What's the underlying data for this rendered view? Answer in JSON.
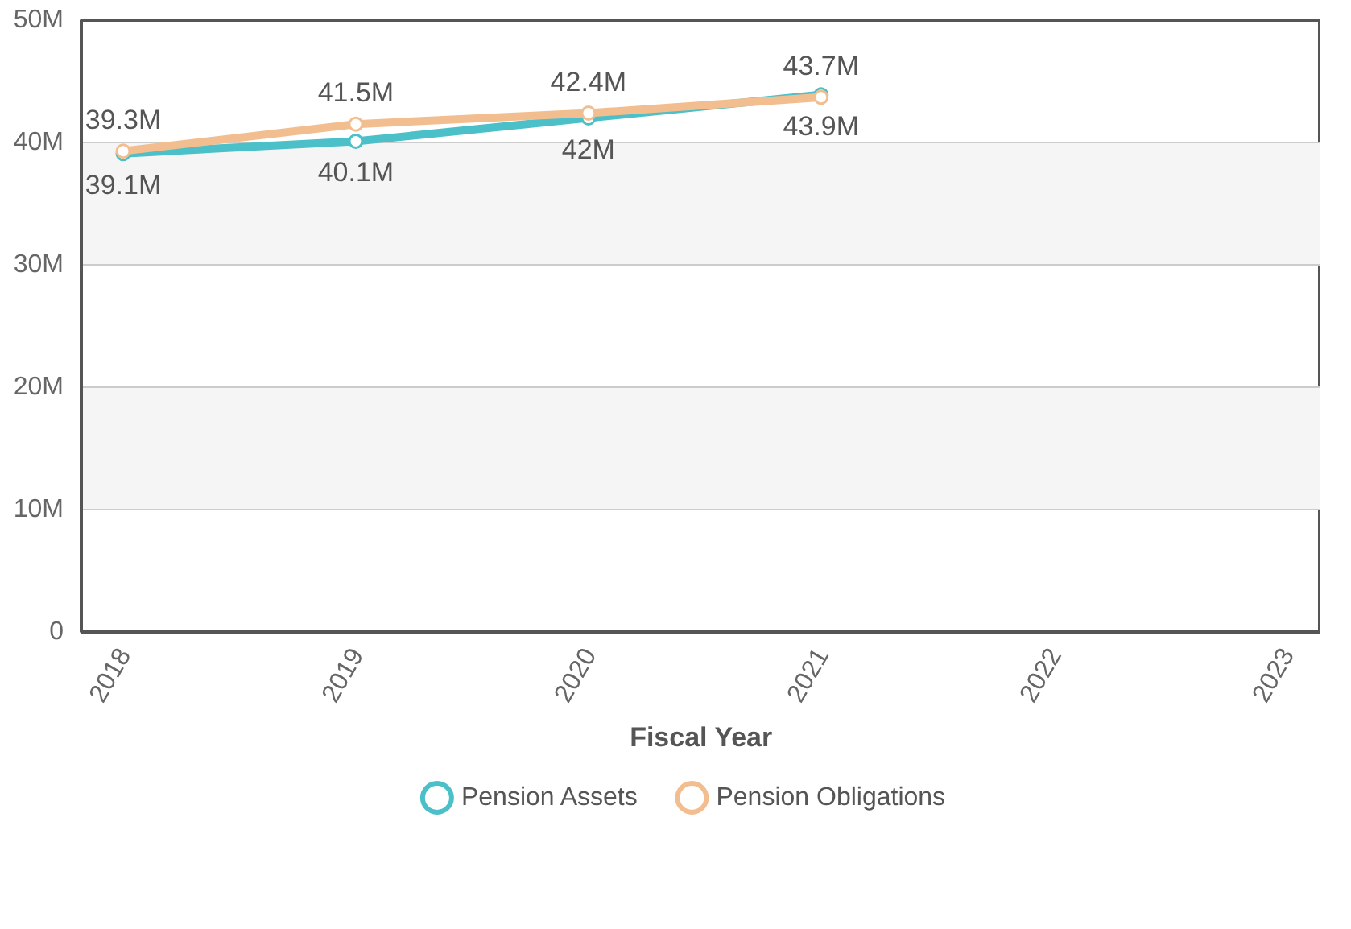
{
  "chart_data": {
    "type": "line",
    "xlabel": "Fiscal Year",
    "x": [
      2018,
      2019,
      2020,
      2021
    ],
    "xlim": [
      2017.82,
      2023.15
    ],
    "xticks": [
      2018,
      2019,
      2020,
      2021,
      2022,
      2023
    ],
    "ylim": [
      0,
      50000000
    ],
    "yticks": [
      {
        "value": 0,
        "label": "0"
      },
      {
        "value": 10000000,
        "label": "10M"
      },
      {
        "value": 20000000,
        "label": "20M"
      },
      {
        "value": 30000000,
        "label": "30M"
      },
      {
        "value": 40000000,
        "label": "40M"
      },
      {
        "value": 50000000,
        "label": "50M"
      }
    ],
    "series": [
      {
        "name": "Pension Assets",
        "color": "#4bc0c8",
        "values": [
          39100000,
          40100000,
          42000000,
          43900000
        ],
        "value_labels": [
          "39.1M",
          "40.1M",
          "42M",
          "43.9M"
        ]
      },
      {
        "name": "Pension Obligations",
        "color": "#f2be90",
        "values": [
          39300000,
          41500000,
          42400000,
          43700000
        ],
        "value_labels": [
          "39.3M",
          "41.5M",
          "42.4M",
          "43.7M"
        ]
      }
    ],
    "grid": "y",
    "legend": "bottom",
    "marker": "circle",
    "line_style": "solid"
  }
}
